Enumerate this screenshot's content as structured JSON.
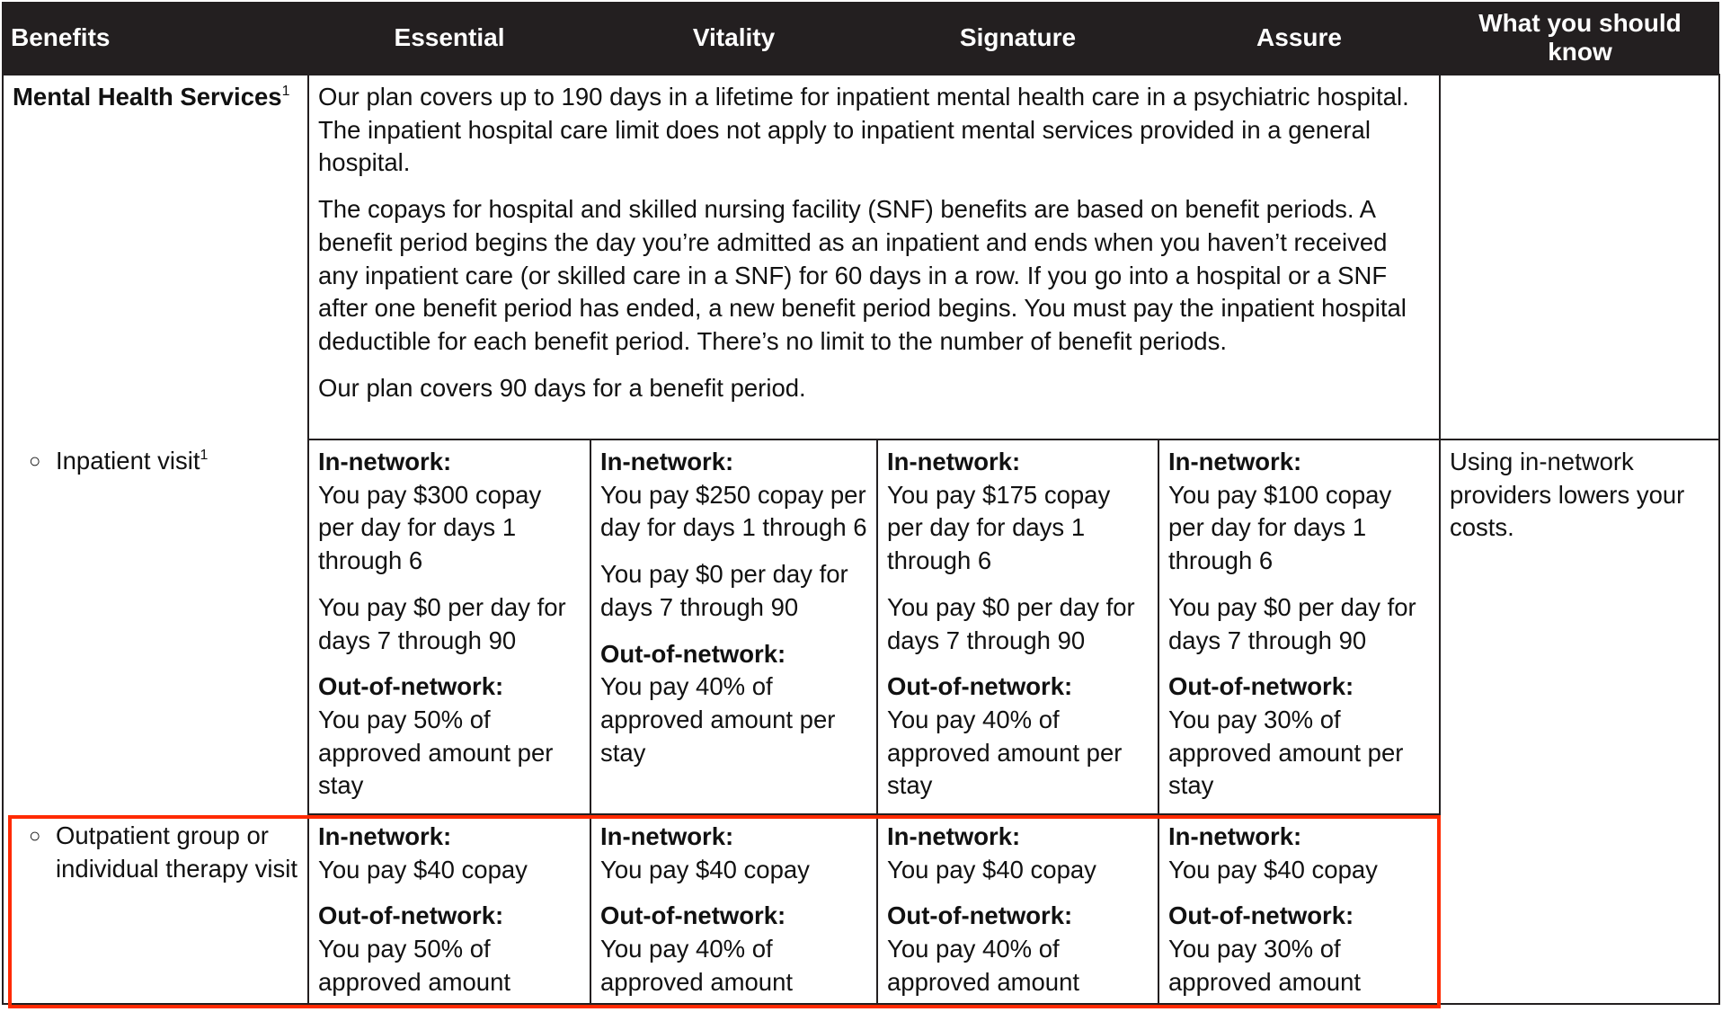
{
  "header": {
    "benefits": "Benefits",
    "plans": [
      "Essential",
      "Vitality",
      "Signature",
      "Assure"
    ],
    "know": "What you should know"
  },
  "mental_health": {
    "title": "Mental Health Services",
    "sup": "1",
    "paragraphs": [
      "Our plan covers up to 190 days in a lifetime for inpatient mental health care in a psychiatric hospital. The inpatient hospital care limit does not apply to inpatient mental services provided in a general hospital.",
      "The copays for hospital and skilled nursing facility (SNF) benefits are based on benefit periods. A benefit period begins the day you’re admitted as an inpatient and ends when you haven’t received any inpatient care (or skilled care in a SNF) for 60 days in a row. If you go into a hospital or a SNF after one benefit period has ended, a new benefit period begins. You must pay the inpatient hospital deductible for each benefit period. There’s no limit to the number of benefit periods.",
      "Our plan covers 90 days for a benefit period."
    ]
  },
  "inpatient": {
    "label": "Inpatient visit",
    "sup": "1",
    "bullet": "○",
    "know": "Using in-network providers lowers your costs.",
    "cells": [
      {
        "in_label": "In-network:",
        "in_text": "You pay $300 copay per day for days 1 through 6",
        "in_text2": "You pay $0 per day for days 7 through 90",
        "out_label": "Out-of-network:",
        "out_text": "You pay 50% of approved amount per stay"
      },
      {
        "in_label": "In-network:",
        "in_text": "You pay $250 copay per day for days 1 through 6",
        "in_text2": "You pay $0 per day for days 7 through 90",
        "out_label": "Out-of-network:",
        "out_text": "You pay 40% of approved amount per stay"
      },
      {
        "in_label": "In-network:",
        "in_text": "You pay $175 copay per day for days 1 through 6",
        "in_text2": "You pay $0 per day for days 7 through 90",
        "out_label": "Out-of-network:",
        "out_text": "You pay 40% of approved amount per stay"
      },
      {
        "in_label": "In-network:",
        "in_text": "You pay $100 copay per day for days 1 through 6",
        "in_text2": "You pay $0 per day for days 7 through 90",
        "out_label": "Out-of-network:",
        "out_text": "You pay 30% of approved amount per stay"
      }
    ]
  },
  "outpatient": {
    "label": "Outpatient group or individual therapy visit",
    "bullet": "○",
    "cells": [
      {
        "in_label": "In-network:",
        "in_text": "You pay $40 copay",
        "out_label": "Out-of-network:",
        "out_text": "You pay 50% of approved amount"
      },
      {
        "in_label": "In-network:",
        "in_text": "You pay $40 copay",
        "out_label": "Out-of-network:",
        "out_text": "You pay 40% of approved amount"
      },
      {
        "in_label": "In-network:",
        "in_text": "You pay $40 copay",
        "out_label": "Out-of-network:",
        "out_text": "You pay 40% of approved amount"
      },
      {
        "in_label": "In-network:",
        "in_text": "You pay $40 copay",
        "out_label": "Out-of-network:",
        "out_text": "You pay 30% of approved amount"
      }
    ]
  },
  "colors": {
    "header_bg": "#231f20",
    "highlight": "#ff2a00"
  }
}
